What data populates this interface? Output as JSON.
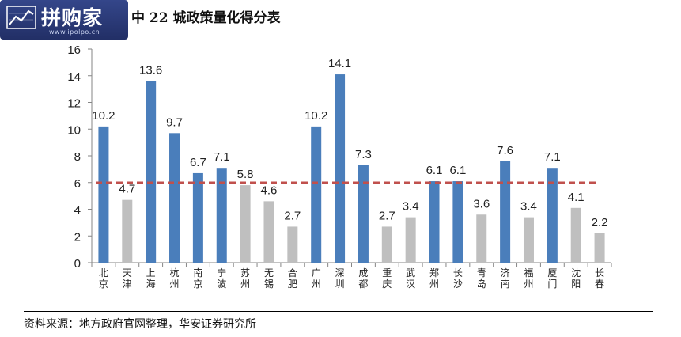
{
  "header": {
    "logo_text": "拼购家",
    "logo_site": "www.ipolpo.cn",
    "title": "中 22 城政策量化得分表"
  },
  "footer": {
    "source": "资料来源：地方政府官网整理，华安证券研究所"
  },
  "colors": {
    "highlight_bar": "#4a7ebb",
    "other_bar": "#bfbfbf",
    "average_line": "#c0504d"
  },
  "chart_data": {
    "type": "bar",
    "categories": [
      "北京",
      "天津",
      "上海",
      "杭州",
      "南京",
      "宁波",
      "苏州",
      "无锡",
      "合肥",
      "广州",
      "深圳",
      "成都",
      "重庆",
      "武汉",
      "郑州",
      "长沙",
      "青岛",
      "济南",
      "福州",
      "厦门",
      "沈阳",
      "长春"
    ],
    "values": [
      10.2,
      4.7,
      13.6,
      9.7,
      6.7,
      7.1,
      5.8,
      4.6,
      2.7,
      10.2,
      14.1,
      7.3,
      2.7,
      3.4,
      6.1,
      6.1,
      3.6,
      7.6,
      3.4,
      7.1,
      4.1,
      2.2
    ],
    "value_labels": [
      "10.2",
      "4.7",
      "13.6",
      "9.7",
      "6.7",
      "7.1",
      "5.8",
      "4.6",
      "2.7",
      "10.2",
      "14.1",
      "7.3",
      "2.7",
      "3.4",
      "6.1",
      "6.1",
      "3.6",
      "7.6",
      "3.4",
      "7.1",
      "4.1",
      "2.2"
    ],
    "highlighted": [
      true,
      false,
      true,
      true,
      true,
      true,
      false,
      false,
      false,
      true,
      true,
      true,
      false,
      false,
      true,
      true,
      false,
      true,
      false,
      true,
      false,
      false
    ],
    "reference_line": 6,
    "ylim": [
      0,
      16
    ],
    "yticks": [
      "0",
      "2",
      "4",
      "6",
      "8",
      "10",
      "12",
      "14",
      "16"
    ],
    "xlabel": "",
    "ylabel": "",
    "grid": false,
    "legend": "none"
  }
}
